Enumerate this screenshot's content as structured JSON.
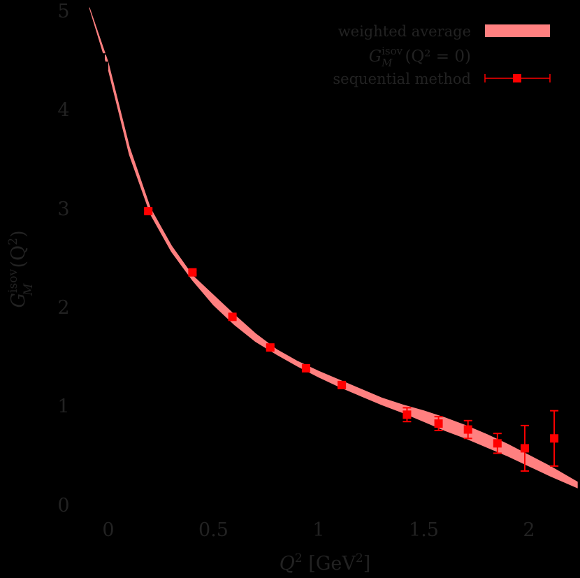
{
  "chart_data": {
    "type": "scatter",
    "title": "",
    "xlabel": "Q^2 [GeV^2]",
    "ylabel": "G_M^isov(Q^2)",
    "xlim": [
      -0.18,
      2.23
    ],
    "ylim": [
      -0.1,
      5.1
    ],
    "x_ticks": [
      "0",
      "0.5",
      "1",
      "1.5",
      "2"
    ],
    "x_tick_values": [
      0,
      0.5,
      1,
      1.5,
      2
    ],
    "y_ticks": [
      "0",
      "1",
      "2",
      "3",
      "4",
      "5"
    ],
    "y_tick_values": [
      0,
      1,
      2,
      3,
      4,
      5
    ],
    "grid": false,
    "legend_position": "top-right",
    "legend": [
      {
        "label": "weighted average",
        "style": "band",
        "color": "#ff8080"
      },
      {
        "label": "G_M^isov(Q^2 = 0)",
        "style": "point",
        "color": "#000000"
      },
      {
        "label": "sequential method",
        "style": "errorbar-square",
        "color": "#ff0000"
      }
    ],
    "series": [
      {
        "name": "weighted average",
        "kind": "band",
        "color": "#ff8080",
        "x": [
          -0.09,
          0.0,
          0.1,
          0.2,
          0.3,
          0.4,
          0.5,
          0.6,
          0.7,
          0.8,
          0.9,
          1.0,
          1.1,
          1.2,
          1.3,
          1.4,
          1.5,
          1.6,
          1.7,
          1.8,
          1.9,
          2.0,
          2.1,
          2.23
        ],
        "upper": [
          5.03,
          4.47,
          3.62,
          3.0,
          2.62,
          2.32,
          2.12,
          1.92,
          1.73,
          1.57,
          1.45,
          1.35,
          1.26,
          1.17,
          1.08,
          1.01,
          0.95,
          0.88,
          0.8,
          0.71,
          0.61,
          0.5,
          0.39,
          0.23
        ],
        "lower": [
          5.03,
          4.4,
          3.54,
          2.94,
          2.56,
          2.27,
          2.02,
          1.82,
          1.65,
          1.52,
          1.4,
          1.29,
          1.19,
          1.1,
          1.01,
          0.93,
          0.84,
          0.75,
          0.67,
          0.58,
          0.49,
          0.39,
          0.29,
          0.17
        ]
      },
      {
        "name": "G_M^isov(Q^2 = 0)",
        "kind": "point",
        "color": "#000000",
        "points": [
          {
            "x": -0.02,
            "y": 4.44,
            "err": 0.12
          }
        ]
      },
      {
        "name": "sequential method",
        "kind": "errorbar",
        "color": "#ff0000",
        "points": [
          {
            "x": 0.19,
            "y": 2.97,
            "err": 0.02
          },
          {
            "x": 0.4,
            "y": 2.35,
            "err": 0.02
          },
          {
            "x": 0.59,
            "y": 1.9,
            "err": 0.02
          },
          {
            "x": 0.77,
            "y": 1.59,
            "err": 0.02
          },
          {
            "x": 0.94,
            "y": 1.38,
            "err": 0.02
          },
          {
            "x": 1.11,
            "y": 1.21,
            "err": 0.02
          },
          {
            "x": 1.42,
            "y": 0.91,
            "err": 0.07
          },
          {
            "x": 1.57,
            "y": 0.82,
            "err": 0.07
          },
          {
            "x": 1.71,
            "y": 0.76,
            "err": 0.09
          },
          {
            "x": 1.85,
            "y": 0.62,
            "err": 0.1
          },
          {
            "x": 1.98,
            "y": 0.57,
            "err": 0.23
          },
          {
            "x": 2.12,
            "y": 0.67,
            "err": 0.28
          }
        ]
      }
    ]
  },
  "legend": {
    "items": [
      {
        "label": "weighted average"
      },
      {
        "label_main": "G",
        "label_sup": "isov",
        "label_sub": "M",
        "label_rest": "(Q² = 0)"
      },
      {
        "label": "sequential method"
      }
    ]
  },
  "axes": {
    "xlabel_main": "Q",
    "xlabel_sup": "2",
    "xlabel_rest": " [GeV",
    "xlabel_sup2": "2",
    "xlabel_end": "]",
    "ylabel_main": "G",
    "ylabel_sup": "isov",
    "ylabel_sub": "M",
    "ylabel_rest": "(Q",
    "ylabel_sup2": "2",
    "ylabel_end": ")"
  }
}
